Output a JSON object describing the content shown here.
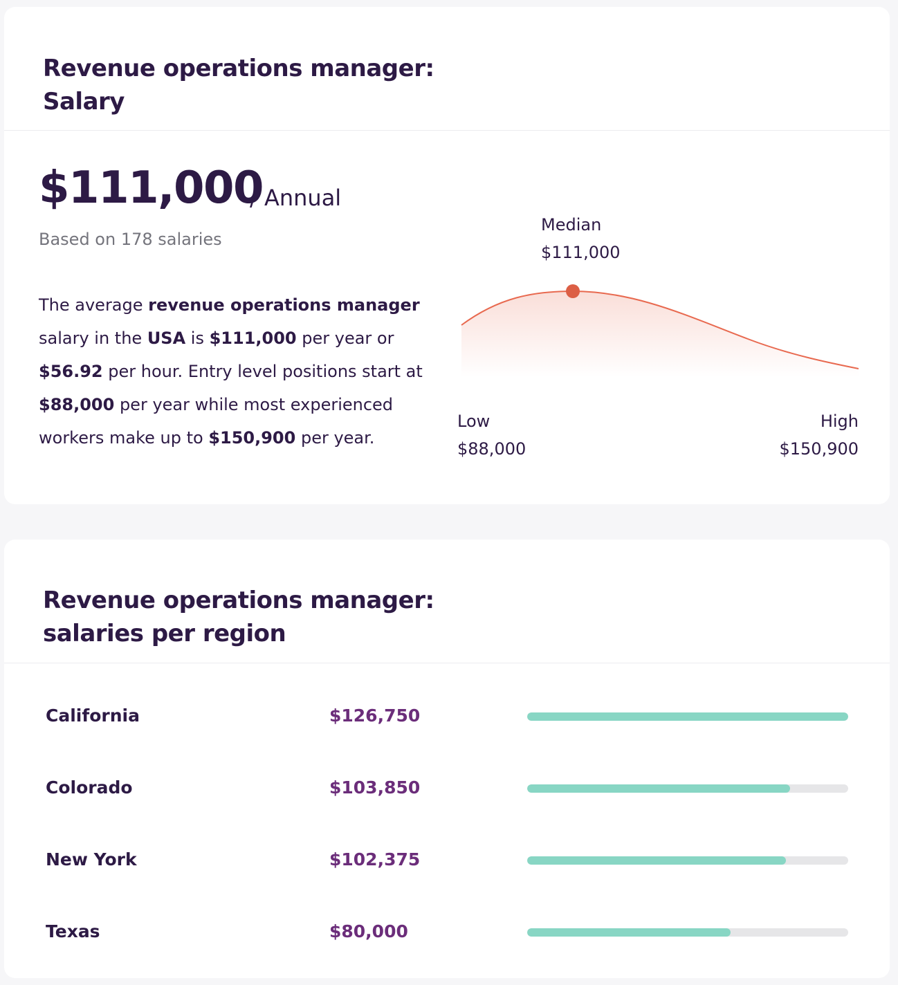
{
  "salary_card": {
    "title_line1": "Revenue operations manager:",
    "title_line2": "Salary",
    "amount": "$111,000",
    "period": "/ Annual",
    "based_on": "Based on 178 salaries",
    "description": {
      "p1": "The average ",
      "job": "revenue operations manager",
      "p2": " salary in the ",
      "country": "USA",
      "p3": " is ",
      "yearly": "$111,000",
      "p4": " per year or ",
      "hourly": "$56.92",
      "p5": " per hour. Entry level positions start at ",
      "entry": "$88,000",
      "p6": " per year while most experienced workers make up to ",
      "top": "$150,900",
      "p7": " per year."
    },
    "chart": {
      "median_label": "Median",
      "median_value": "$111,000",
      "low_label": "Low",
      "low_value": "$88,000",
      "high_label": "High",
      "high_value": "$150,900",
      "curve_color": "#e8694f",
      "marker_color": "#dc5f45"
    }
  },
  "region_card": {
    "title_line1": "Revenue operations manager:",
    "title_line2": "salaries per region",
    "bar_color": "#88d6c4",
    "track_color": "#e6e6e8",
    "regions": [
      {
        "name": "California",
        "salary": "$126,750",
        "fill_fraction": 1.0
      },
      {
        "name": "Colorado",
        "salary": "$103,850",
        "fill_fraction": 0.82
      },
      {
        "name": "New York",
        "salary": "$102,375",
        "fill_fraction": 0.807
      },
      {
        "name": "Texas",
        "salary": "$80,000",
        "fill_fraction": 0.634
      }
    ]
  }
}
